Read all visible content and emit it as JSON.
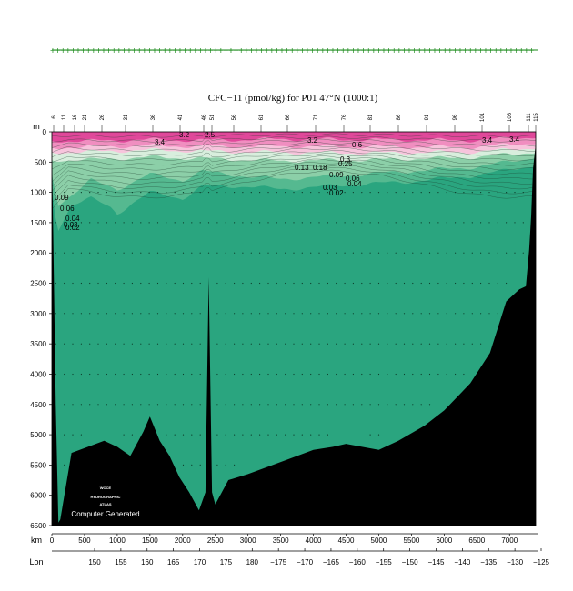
{
  "title": "CFC−11 (pmol/kg) for P01 47°N (1000:1)",
  "depth_axis_unit": "m",
  "km_axis_unit": "km",
  "lon_axis_unit": "Lon",
  "watermark": {
    "line1": "WOCE",
    "line2": "HYDROGRAPHIC",
    "line3": "ATLAS",
    "credit": "Computer Generated"
  },
  "colors": {
    "deep_water": "#2aa57f",
    "surface_magenta": "#e0489a",
    "surface_pink": "#f08ec0",
    "light_pink": "#f7c4dc",
    "pale_green": "#d8eedd",
    "mid_green": "#8ccfa8",
    "green": "#55b990",
    "bottom": "#000000",
    "station_marker": "#1a8a1a"
  },
  "chart_data": {
    "type": "section",
    "title": "CFC−11 (pmol/kg) for P01 47°N (1000:1)",
    "ylabel": "m",
    "xlabel": "km",
    "ylim": [
      6500,
      0
    ],
    "xlim": [
      0,
      7400
    ],
    "depth_ticks": [
      "0",
      "500",
      "1000",
      "1500",
      "2000",
      "2500",
      "3000",
      "3500",
      "4000",
      "4500",
      "5000",
      "5500",
      "6000",
      "6500"
    ],
    "km_ticks": [
      "0",
      "500",
      "1000",
      "1500",
      "2000",
      "2500",
      "3000",
      "3500",
      "4000",
      "4500",
      "5000",
      "5500",
      "6000",
      "6500",
      "7000"
    ],
    "lon_ticks": [
      "150",
      "155",
      "160",
      "165",
      "170",
      "175",
      "180",
      "−175",
      "−170",
      "−165",
      "−160",
      "−155",
      "−150",
      "−145",
      "−140",
      "−135",
      "−130",
      "−125"
    ],
    "station_numbers": [
      "6",
      "11",
      "16",
      "21",
      "26",
      "31",
      "36",
      "41",
      "46",
      "51",
      "56",
      "61",
      "66",
      "71",
      "76",
      "81",
      "86",
      "91",
      "96",
      "101",
      "106",
      "111",
      "115"
    ],
    "contour_labels": [
      "3.4",
      "3.2",
      "2.5",
      "3.2",
      "3.4",
      "3.4",
      "0.6",
      "0.13",
      "0.18",
      "0.25",
      "0.3",
      "0.09",
      "0.06",
      "0.03",
      "0.04",
      "0.02",
      "0.09",
      "0.06",
      "0.04",
      "0.03",
      "0.02"
    ],
    "bottom_profile": {
      "km": [
        0,
        60,
        100,
        130,
        300,
        800,
        1000,
        1200,
        1400,
        1500,
        1650,
        1800,
        1950,
        2100,
        2250,
        2350,
        2400,
        2450,
        2500,
        2700,
        3000,
        3500,
        4000,
        4300,
        4500,
        5000,
        5300,
        5700,
        6000,
        6400,
        6700,
        6950,
        7150,
        7250,
        7300,
        7330,
        7360,
        7400
      ],
      "depth": [
        200,
        4500,
        6450,
        6400,
        5300,
        5100,
        5200,
        5350,
        4950,
        4700,
        5100,
        5350,
        5700,
        5950,
        6250,
        5950,
        2400,
        5950,
        6150,
        5750,
        5650,
        5450,
        5250,
        5200,
        5150,
        5250,
        5100,
        4850,
        4600,
        4150,
        3650,
        2800,
        2600,
        2550,
        1950,
        1400,
        600,
        200
      ]
    },
    "surface_layers": [
      {
        "name": "magenta",
        "depth_km": [
          0,
          600,
          1500,
          2300,
          3500,
          5000,
          6500,
          7400
        ],
        "depth_m": [
          150,
          150,
          130,
          140,
          120,
          130,
          140,
          80
        ]
      },
      {
        "name": "pink",
        "depth_km": [
          0,
          600,
          1500,
          2300,
          3500,
          5000,
          6500,
          7400
        ],
        "depth_m": [
          260,
          250,
          230,
          240,
          240,
          250,
          250,
          180
        ]
      },
      {
        "name": "light_pink",
        "depth_km": [
          0,
          600,
          1500,
          2300,
          3500,
          5000,
          6500,
          7400
        ],
        "depth_m": [
          340,
          330,
          300,
          320,
          340,
          350,
          330,
          260
        ]
      },
      {
        "name": "pale_green",
        "depth_km": [
          0,
          600,
          1500,
          2300,
          3500,
          5000,
          6500,
          7400
        ],
        "depth_m": [
          470,
          460,
          420,
          440,
          480,
          460,
          420,
          330
        ]
      },
      {
        "name": "mid_green",
        "depth_km": [
          0,
          100,
          600,
          1000,
          1500,
          2000,
          2300,
          3000,
          3500,
          4500,
          5500,
          6500,
          7400
        ],
        "depth_m": [
          700,
          1200,
          800,
          950,
          700,
          800,
          650,
          740,
          780,
          720,
          650,
          580,
          420
        ]
      },
      {
        "name": "green",
        "depth_km": [
          0,
          80,
          300,
          600,
          900,
          1000,
          1200,
          1500,
          2000,
          2300,
          3000,
          3500,
          4500,
          5500,
          6500,
          7400
        ],
        "depth_m": [
          900,
          1650,
          1200,
          1100,
          1250,
          1350,
          1200,
          1000,
          1100,
          900,
          900,
          950,
          880,
          820,
          720,
          550
        ]
      }
    ]
  }
}
